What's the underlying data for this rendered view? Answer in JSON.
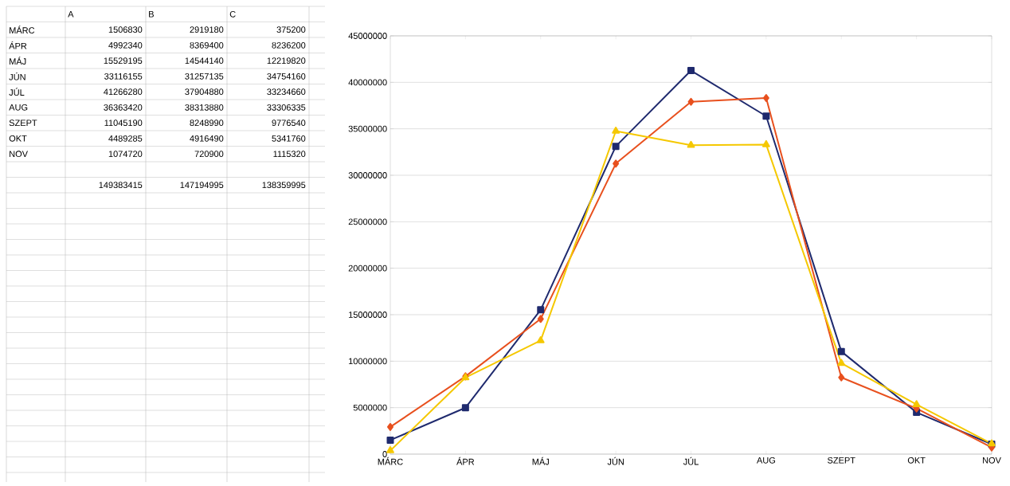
{
  "chart_data": {
    "type": "line",
    "categories": [
      "MÁRC",
      "ÁPR",
      "MÁJ",
      "JÚN",
      "JÚL",
      "AUG",
      "SZEPT",
      "OKT",
      "NOV"
    ],
    "series": [
      {
        "color": "#1f2a6e",
        "marker": "square",
        "values": [
          1506830,
          4992340,
          15529195,
          33116155,
          41266280,
          36363420,
          11045190,
          4489285,
          1074720
        ]
      },
      {
        "color": "#e8501e",
        "marker": "diamond",
        "values": [
          2919180,
          8369400,
          14544140,
          31257135,
          37904880,
          38313880,
          8248990,
          4916490,
          720900
        ]
      },
      {
        "color": "#f5c800",
        "marker": "triangle",
        "values": [
          375200,
          8236200,
          12219820,
          34754160,
          33234660,
          33306335,
          9776540,
          5341760,
          1115320
        ]
      }
    ],
    "annotations": [
      "A",
      "B",
      "C",
      "1506830",
      "2919180",
      "375200",
      "4992340",
      "8369400",
      "8236200",
      "15529195",
      "14544140",
      "12219820",
      "33116155",
      "31257135",
      "34754160",
      "41266280",
      "37904880",
      "33234660",
      "36363420",
      "38313880",
      "33306335",
      "11045190",
      "8248990",
      "9776540",
      "4489285",
      "4916490",
      "5341760",
      "1074720",
      "720900",
      "1115320",
      "149383415",
      "147194995",
      "138359995"
    ],
    "ylim": [
      0,
      45000000
    ],
    "yticks": [
      0,
      5000000,
      10000000,
      15000000,
      20000000,
      25000000,
      30000000,
      35000000,
      40000000,
      45000000
    ],
    "grid": "y",
    "line_style": "solid"
  }
}
